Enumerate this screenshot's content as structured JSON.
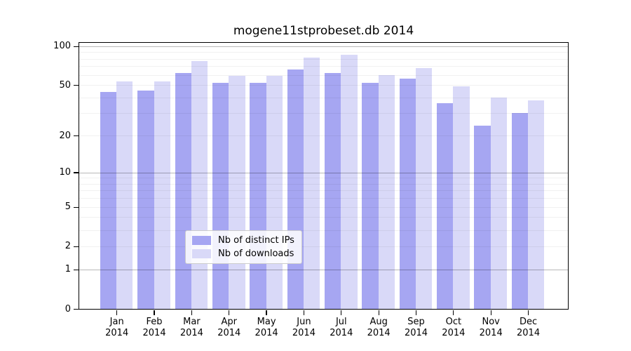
{
  "chart_data": {
    "type": "bar",
    "title": "mogene11stprobeset.db 2014",
    "scale": "log1p",
    "xlabel": "",
    "ylabel": "",
    "categories": [
      "Jan",
      "Feb",
      "Mar",
      "Apr",
      "May",
      "Jun",
      "Jul",
      "Aug",
      "Sep",
      "Oct",
      "Nov",
      "Dec"
    ],
    "category_year": "2014",
    "series": [
      {
        "name": "Nb of distinct IPs",
        "color": "#a6a6f2",
        "values": [
          44,
          45,
          62,
          52,
          52,
          66,
          62,
          52,
          56,
          36,
          24,
          30
        ]
      },
      {
        "name": "Nb of downloads",
        "color": "#d9d9f8",
        "values": [
          53,
          53,
          77,
          59,
          59,
          82,
          86,
          60,
          68,
          49,
          40,
          38
        ]
      }
    ],
    "yticks": [
      0,
      1,
      2,
      5,
      10,
      20,
      50,
      100
    ],
    "ylim": [
      0,
      106
    ],
    "major_gridlines": [
      1,
      10,
      100
    ],
    "minor_gridlines": [
      2,
      3,
      4,
      5,
      6,
      7,
      8,
      9,
      20,
      30,
      40,
      50,
      60,
      70,
      80,
      90
    ],
    "grid": "on",
    "legend_position": "bottom-center",
    "colors": {
      "background": "#ffffff",
      "spine": "#000000",
      "major_grid": "rgba(0,0,0,0.28)",
      "minor_grid": "rgba(0,0,0,0.055)",
      "text": "#000000"
    }
  }
}
